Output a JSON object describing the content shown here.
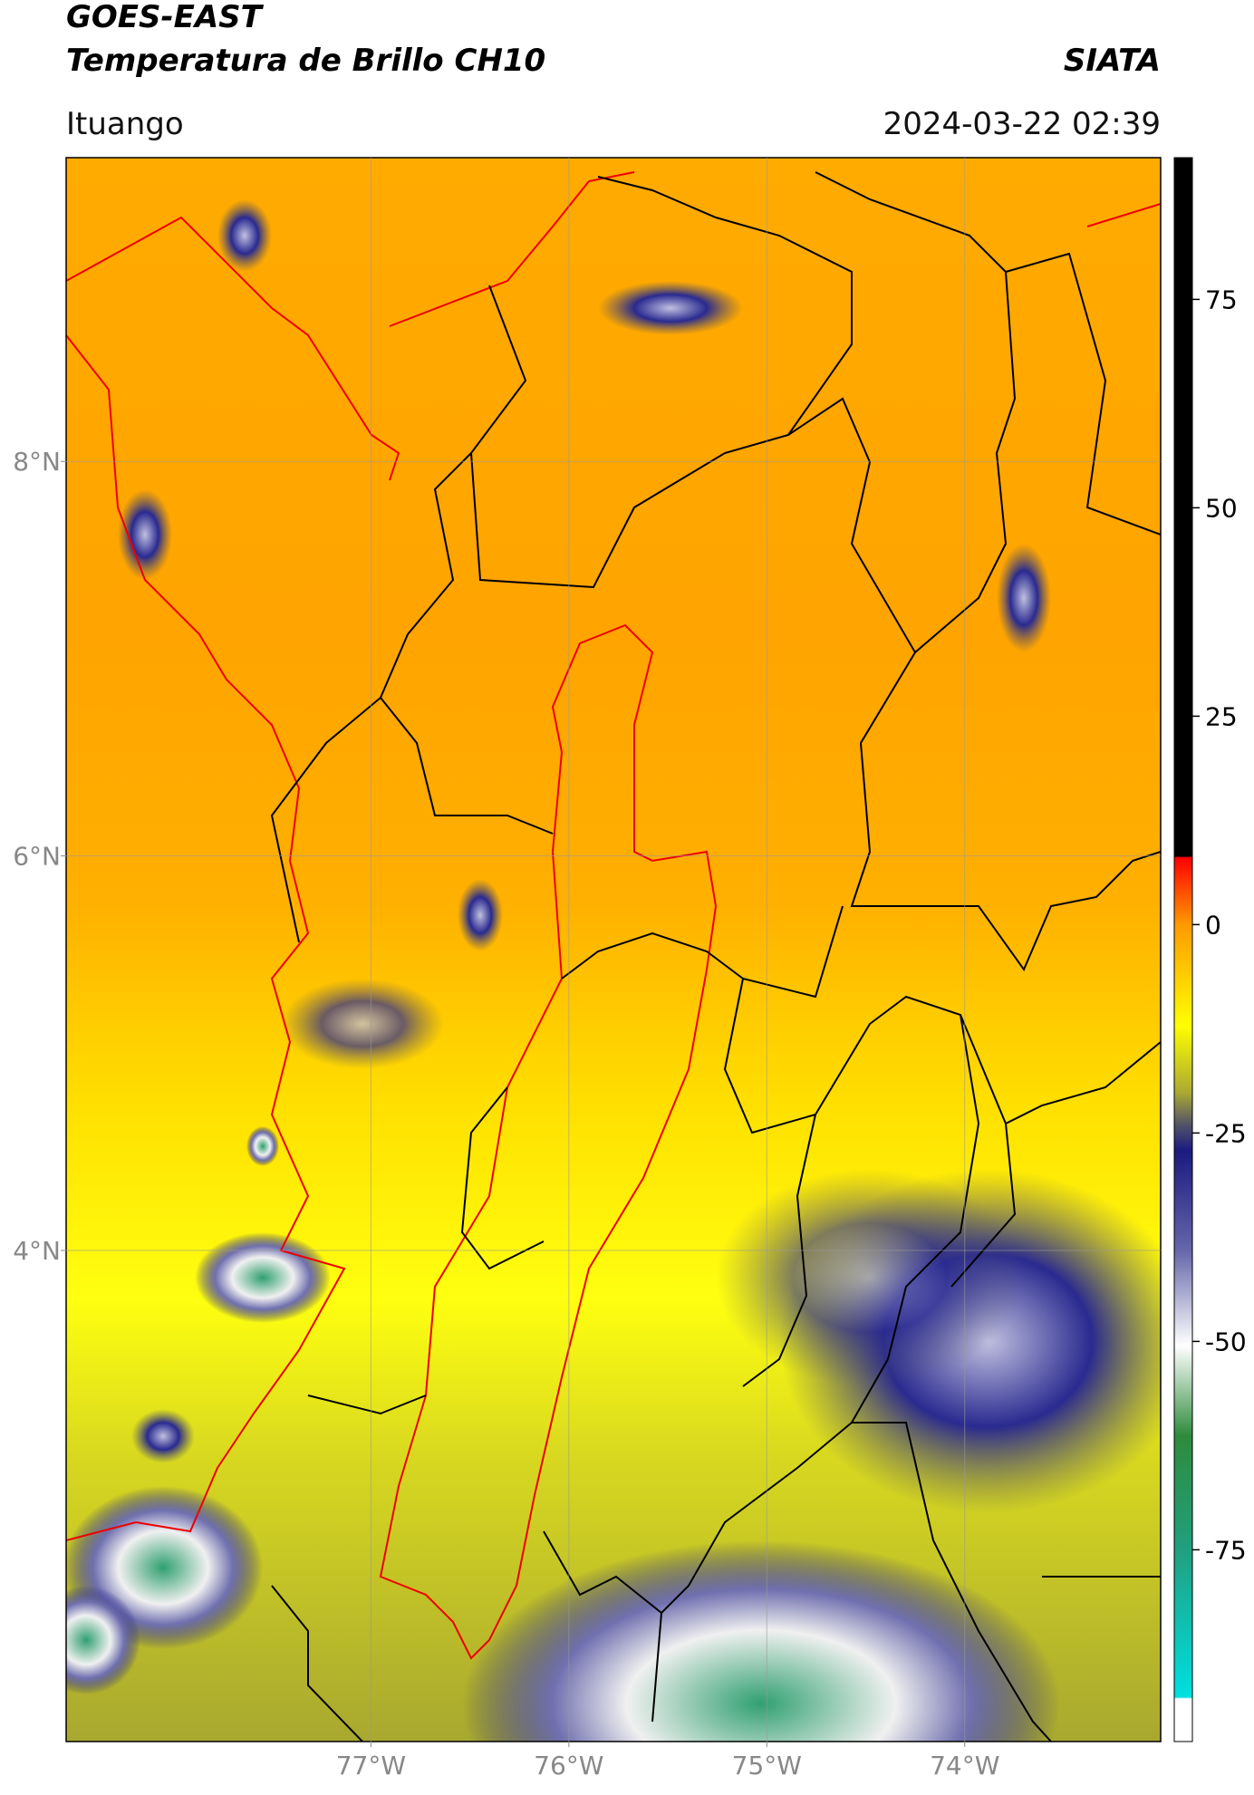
{
  "header": {
    "title": "GOES-EAST",
    "subtitle": "Temperatura de Brillo CH10",
    "location": "Ituango",
    "brand": "SIATA",
    "date": "2024-03-22 02:39"
  },
  "map": {
    "xlim": [
      -78.54,
      -73.01
    ],
    "ylim": [
      1.51,
      9.54
    ],
    "grid": true,
    "xticks": [
      {
        "value": -77,
        "label": "77°W"
      },
      {
        "value": -76,
        "label": "76°W"
      },
      {
        "value": -75,
        "label": "75°W"
      },
      {
        "value": -74,
        "label": "74°W"
      }
    ],
    "yticks": [
      {
        "value": 8,
        "label": "8°N"
      },
      {
        "value": 6,
        "label": "6°N"
      },
      {
        "value": 4,
        "label": "4°N"
      }
    ]
  },
  "colorbar": {
    "lim": [
      -98,
      92
    ],
    "ticks": [
      75,
      50,
      25,
      0,
      -25,
      -50,
      -75
    ]
  }
}
